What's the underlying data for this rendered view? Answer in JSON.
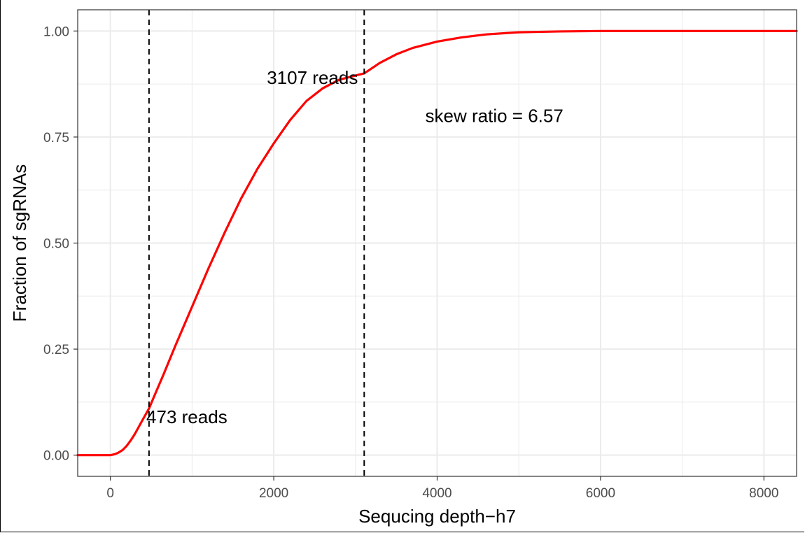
{
  "chart_data": {
    "type": "line",
    "xlabel": "Sequcing depth−h7",
    "ylabel": "Fraction of sgRNAs",
    "xlim": [
      -400,
      8400
    ],
    "ylim": [
      -0.05,
      1.05
    ],
    "x_ticks": [
      0,
      2000,
      4000,
      6000,
      8000
    ],
    "x_tick_labels": [
      "0",
      "2000",
      "4000",
      "6000",
      "8000"
    ],
    "y_ticks": [
      0,
      0.25,
      0.5,
      0.75,
      1.0
    ],
    "y_tick_labels": [
      "0.00",
      "0.25",
      "0.50",
      "0.75",
      "1.00"
    ],
    "grid": true,
    "series": [
      {
        "color": "#ff0000",
        "x": [
          -400,
          0,
          50,
          100,
          150,
          200,
          250,
          300,
          400,
          473,
          550,
          650,
          800,
          1000,
          1200,
          1400,
          1600,
          1800,
          2000,
          2200,
          2400,
          2600,
          2800,
          3000,
          3107,
          3300,
          3500,
          3700,
          4000,
          4300,
          4600,
          5000,
          5500,
          6000,
          7000,
          8400
        ],
        "y": [
          0,
          0,
          0.002,
          0.006,
          0.012,
          0.022,
          0.035,
          0.05,
          0.085,
          0.11,
          0.145,
          0.19,
          0.26,
          0.35,
          0.44,
          0.525,
          0.605,
          0.675,
          0.735,
          0.79,
          0.835,
          0.865,
          0.885,
          0.895,
          0.9,
          0.925,
          0.945,
          0.96,
          0.975,
          0.985,
          0.992,
          0.997,
          0.999,
          1.0,
          1.0,
          1.0
        ]
      }
    ],
    "vlines": [
      {
        "x": 473,
        "label": "473 reads"
      },
      {
        "x": 3107,
        "label": "3107 reads"
      }
    ],
    "annotation": {
      "text": "skew ratio = 6.57",
      "x": 4700,
      "y": 0.8
    }
  }
}
